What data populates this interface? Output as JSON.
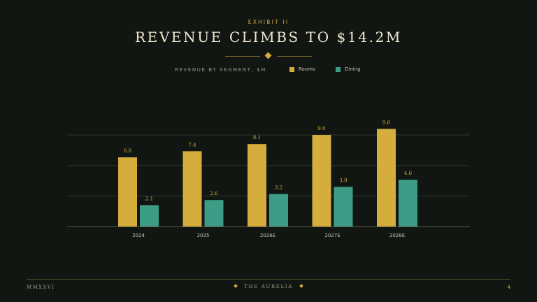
{
  "header": {
    "exhibit": "EXHIBIT II",
    "title": "REVENUE CLIMBS TO $14.2M",
    "subtitle": "REVENUE BY SEGMENT, $M"
  },
  "colors": {
    "rooms": "#d4ad3c",
    "dining": "#3d9c86",
    "grid": "#2c342c",
    "axis": "#5e5a3c",
    "value_label": "#d4ad3c",
    "tick_label": "#cfc8b2"
  },
  "chart_data": {
    "type": "bar",
    "categories": [
      "2024",
      "2025",
      "2026E",
      "2027E",
      "2028E"
    ],
    "series": [
      {
        "name": "Rooms",
        "values": [
          6.8,
          7.4,
          8.1,
          9.0,
          9.6
        ]
      },
      {
        "name": "Dining",
        "values": [
          2.1,
          2.6,
          3.2,
          3.9,
          4.6
        ]
      }
    ],
    "value_labels": {
      "Rooms": [
        "6.8",
        "7.4",
        "8.1",
        "9.0",
        "9.6"
      ],
      "Dining": [
        "2.1",
        "2.6",
        "3.2",
        "3.9",
        "4.6"
      ]
    },
    "title": "REVENUE CLIMBS TO $14.2M",
    "subtitle": "REVENUE BY SEGMENT, $M",
    "ylim": [
      0,
      11.2
    ],
    "gridlines": [
      3,
      6,
      9
    ],
    "grid": true,
    "legend": "top"
  },
  "footer": {
    "left": "MMXXVI",
    "center": "THE AURELIA",
    "page_number": "4"
  }
}
